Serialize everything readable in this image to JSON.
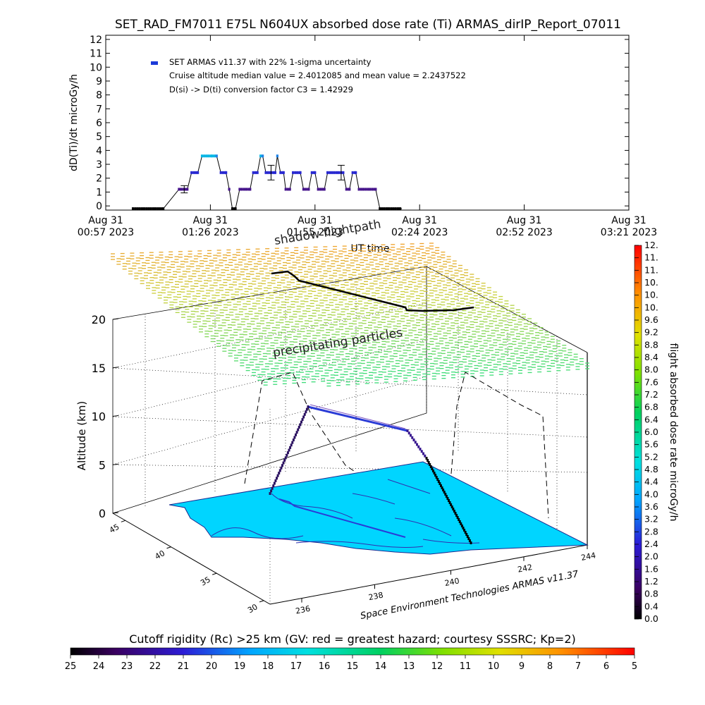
{
  "title": "SET_RAD_FM7011  E75L N604UX absorbed dose rate (Ti) ARMAS_dirIP_Report_07011",
  "chart_data": [
    {
      "type": "scatter",
      "ylabel": "dD(Ti)/dt microGy/h",
      "xlabel": "UT time",
      "ylim": [
        0,
        12
      ],
      "yticks": [
        "0",
        "1",
        "2",
        "3",
        "4",
        "5",
        "6",
        "7",
        "8",
        "9",
        "10",
        "11",
        "12"
      ],
      "xticks": [
        {
          "line1": "Aug 31",
          "line2": "00:57 2023"
        },
        {
          "line1": "Aug 31",
          "line2": "01:26 2023"
        },
        {
          "line1": "Aug 31",
          "line2": "01:55 2023"
        },
        {
          "line1": "Aug 31",
          "line2": "02:24 2023"
        },
        {
          "line1": "Aug 31",
          "line2": "02:52 2023"
        },
        {
          "line1": "Aug 31",
          "line2": "03:21 2023"
        }
      ],
      "legend": {
        "series_label": "SET ARMAS v11.37 with 22% 1-sigma uncertainty",
        "note1": "Cruise altitude median value = 2.4012085 and mean value = 2.2437522",
        "note2": "D(si) -> D(ti) conversion factor C3 = 1.42929"
      },
      "series": [
        {
          "name": "SET ARMAS v11.37 with 22% 1-sigma uncertainty",
          "points": [
            [
              0.26,
              -0.2
            ],
            [
              0.55,
              -0.2
            ],
            [
              0.7,
              1.2
            ],
            [
              0.78,
              1.2
            ],
            [
              0.82,
              2.4
            ],
            [
              0.88,
              2.4
            ],
            [
              0.92,
              3.6
            ],
            [
              1.02,
              3.6
            ],
            [
              1.06,
              3.6
            ],
            [
              1.1,
              2.4
            ],
            [
              1.15,
              2.4
            ],
            [
              1.18,
              1.2
            ],
            [
              1.21,
              -0.2
            ],
            [
              1.24,
              -0.2
            ],
            [
              1.28,
              1.2
            ],
            [
              1.38,
              1.2
            ],
            [
              1.41,
              2.4
            ],
            [
              1.45,
              2.4
            ],
            [
              1.48,
              3.6
            ],
            [
              1.5,
              3.6
            ],
            [
              1.53,
              2.4
            ],
            [
              1.58,
              2.4
            ],
            [
              1.62,
              2.4
            ],
            [
              1.64,
              3.6
            ],
            [
              1.67,
              2.4
            ],
            [
              1.7,
              2.4
            ],
            [
              1.72,
              1.2
            ],
            [
              1.76,
              1.2
            ],
            [
              1.79,
              2.4
            ],
            [
              1.86,
              2.4
            ],
            [
              1.89,
              1.2
            ],
            [
              1.94,
              1.2
            ],
            [
              1.97,
              2.4
            ],
            [
              2.0,
              2.4
            ],
            [
              2.03,
              1.2
            ],
            [
              2.09,
              1.2
            ],
            [
              2.12,
              2.4
            ],
            [
              2.27,
              2.4
            ],
            [
              2.3,
              1.2
            ],
            [
              2.33,
              1.2
            ],
            [
              2.36,
              2.4
            ],
            [
              2.39,
              2.4
            ],
            [
              2.42,
              1.2
            ],
            [
              2.58,
              1.2
            ],
            [
              2.62,
              -0.2
            ],
            [
              2.83,
              -0.2
            ]
          ],
          "error_bars": [
            [
              0.75,
              1.2,
              0.26
            ],
            [
              1.58,
              2.4,
              0.53
            ],
            [
              2.25,
              2.4,
              0.53
            ]
          ]
        }
      ]
    },
    {
      "type": "scatter",
      "zlabel": "Altitude (km)",
      "zticks": [
        "0",
        "5",
        "10",
        "15",
        "20"
      ],
      "lat_ticks": [
        "30",
        "35",
        "40",
        "45"
      ],
      "lon_ticks": [
        "236",
        "238",
        "240",
        "242",
        "244"
      ],
      "annotations": [
        "shadow flightpath",
        "precipitating particles"
      ],
      "credit": "Space Environment Technologies ARMAS v11.37"
    }
  ],
  "colorbar_right": {
    "label": "flight absorbed dose rate microGy/h",
    "ticks": [
      "0.0",
      "0.4",
      "0.8",
      "1.2",
      "1.6",
      "2.0",
      "2.4",
      "2.8",
      "3.2",
      "3.6",
      "4.0",
      "4.4",
      "4.8",
      "5.2",
      "5.6",
      "6.0",
      "6.4",
      "6.8",
      "7.2",
      "7.6",
      "8.0",
      "8.4",
      "8.8",
      "9.2",
      "9.6",
      "10.",
      "10.",
      "10.",
      "11.",
      "11.",
      "12."
    ]
  },
  "colorbar_bottom": {
    "label": "Cutoff rigidity (Rc) >25 km (GV: red = greatest hazard; courtesy SSSRC; Kp=2)",
    "ticks": [
      "25",
      "24",
      "23",
      "22",
      "21",
      "20",
      "19",
      "18",
      "17",
      "16",
      "15",
      "14",
      "13",
      "12",
      "11",
      "10",
      "9",
      "8",
      "7",
      "6",
      "5"
    ]
  },
  "colors": {
    "ground": "#00d5ff",
    "flightpath": "#2a3bd6",
    "series_marker": "#1c3ad8"
  }
}
